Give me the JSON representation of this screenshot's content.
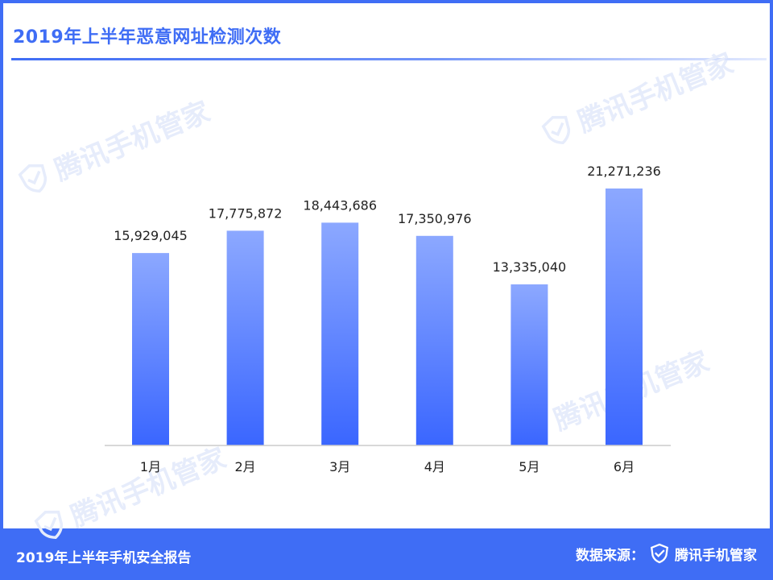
{
  "header": {
    "title": "2019年上半年恶意网址检测次数"
  },
  "watermark": {
    "text": "腾讯手机管家"
  },
  "footer": {
    "report_name": "2019年上半年手机安全报告",
    "source_label": "数据来源：",
    "brand": "腾讯手机管家"
  },
  "colors": {
    "accent": "#3f6df5",
    "bar_top": "#8ca8ff",
    "bar_bottom": "#3a66ff"
  },
  "chart_data": {
    "type": "bar",
    "title": "2019年上半年恶意网址检测次数",
    "xlabel": "",
    "ylabel": "",
    "categories": [
      "1月",
      "2月",
      "3月",
      "4月",
      "5月",
      "6月"
    ],
    "values": [
      15929045,
      17775872,
      18443686,
      17350976,
      13335040,
      21271236
    ],
    "value_labels": [
      "15,929,045",
      "17,775,872",
      "18,443,686",
      "17,350,976",
      "13,335,040",
      "21,271,236"
    ],
    "ylim": [
      0,
      21271236
    ],
    "grid": false,
    "legend": "none"
  }
}
